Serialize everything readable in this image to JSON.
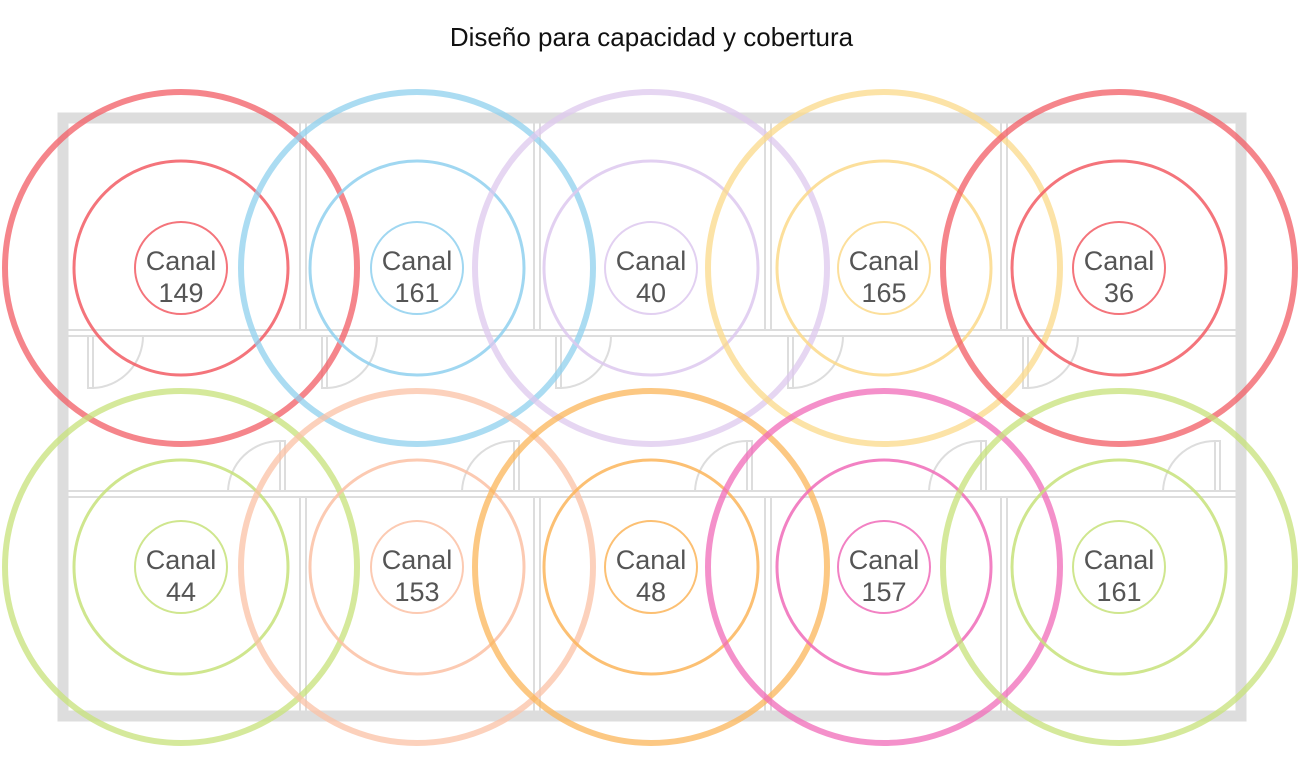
{
  "title": "Diseño para capacidad y cobertura",
  "label_prefix": "Canal",
  "access_points": [
    {
      "channel": "149",
      "color": "#f25c64",
      "row": 0,
      "col": 0
    },
    {
      "channel": "161",
      "color": "#8fd0ee",
      "row": 0,
      "col": 1
    },
    {
      "channel": "40",
      "color": "#ddc8ee",
      "row": 0,
      "col": 2
    },
    {
      "channel": "165",
      "color": "#fbd98a",
      "row": 0,
      "col": 3
    },
    {
      "channel": "36",
      "color": "#f25c64",
      "row": 0,
      "col": 4
    },
    {
      "channel": "44",
      "color": "#c7e27a",
      "row": 1,
      "col": 0
    },
    {
      "channel": "153",
      "color": "#fbc1a5",
      "row": 1,
      "col": 1
    },
    {
      "channel": "48",
      "color": "#fbb55a",
      "row": 1,
      "col": 2
    },
    {
      "channel": "157",
      "color": "#f06bb8",
      "row": 1,
      "col": 3
    },
    {
      "channel": "161",
      "color": "#c7e27a",
      "row": 1,
      "col": 4
    }
  ]
}
